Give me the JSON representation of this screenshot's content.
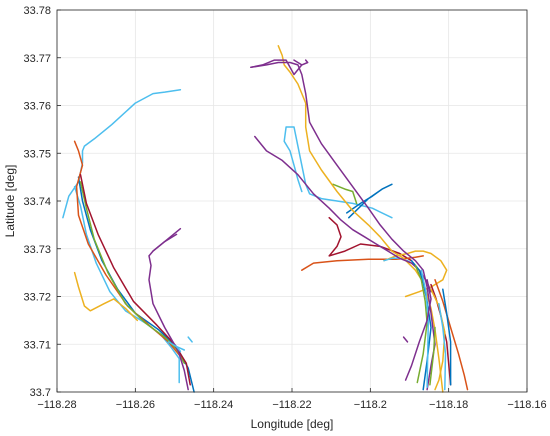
{
  "chart_data": {
    "type": "line",
    "title": "",
    "xlabel": "Longitude [deg]",
    "ylabel": "Latitude [deg]",
    "xlim": [
      -118.28,
      -118.16
    ],
    "ylim": [
      33.7,
      33.78
    ],
    "xticks": [
      -118.28,
      -118.26,
      -118.24,
      -118.22,
      -118.2,
      -118.18,
      -118.16
    ],
    "xtick_labels": [
      "−118.28",
      "−118.26",
      "−118.24",
      "−118.22",
      "−118.2",
      "−118.18",
      "−118.16"
    ],
    "yticks": [
      33.7,
      33.71,
      33.72,
      33.73,
      33.74,
      33.75,
      33.76,
      33.77,
      33.78
    ],
    "ytick_labels": [
      "33.7",
      "33.71",
      "33.72",
      "33.73",
      "33.74",
      "33.75",
      "33.76",
      "33.77",
      "33.78"
    ],
    "grid": true,
    "legend": false,
    "series": [
      {
        "color": "#4DBEEE",
        "x": [
          -118.2785,
          -118.277,
          -118.2745,
          -118.2735,
          -118.2735,
          -118.273,
          -118.2705,
          -118.266,
          -118.26,
          -118.2555,
          -118.2525,
          -118.2485
        ],
        "y": [
          33.7365,
          33.741,
          33.744,
          33.748,
          33.7505,
          33.7515,
          33.753,
          33.756,
          33.7605,
          33.7625,
          33.7628,
          33.7633
        ]
      },
      {
        "color": "#4DBEEE",
        "x": [
          -118.2755,
          -118.274,
          -118.2725,
          -118.27,
          -118.2665,
          -118.2625,
          -118.2575,
          -118.2535,
          -118.251,
          -118.2488,
          -118.2488
        ],
        "y": [
          33.743,
          33.739,
          33.733,
          33.727,
          33.721,
          33.717,
          33.7145,
          33.712,
          33.7095,
          33.707,
          33.702
        ]
      },
      {
        "color": "#0072BD",
        "x": [
          -118.2745,
          -118.2735,
          -118.2715,
          -118.2685,
          -118.2645,
          -118.26,
          -118.254,
          -118.2495,
          -118.2465,
          -118.245
        ],
        "y": [
          33.745,
          33.74,
          33.734,
          33.7275,
          33.7215,
          33.7165,
          33.713,
          33.7095,
          33.705,
          33.7
        ]
      },
      {
        "color": "#D95319",
        "x": [
          -118.2755,
          -118.2745,
          -118.2735,
          -118.275,
          -118.2745,
          -118.272,
          -118.2675,
          -118.262,
          -118.2565,
          -118.2515,
          -118.248
        ],
        "y": [
          33.7525,
          33.7505,
          33.7475,
          33.743,
          33.737,
          33.731,
          33.7245,
          33.718,
          33.714,
          33.7105,
          33.707
        ]
      },
      {
        "color": "#77AC30",
        "x": [
          -118.274,
          -118.2725,
          -118.2705,
          -118.267,
          -118.2625,
          -118.2575,
          -118.2525,
          -118.2495,
          -118.2475
        ],
        "y": [
          33.744,
          33.7385,
          33.732,
          33.725,
          33.7185,
          33.7145,
          33.7115,
          33.709,
          33.706
        ]
      },
      {
        "color": "#A2142F",
        "x": [
          -118.274,
          -118.2725,
          -118.2695,
          -118.2655,
          -118.2605,
          -118.2545,
          -118.25,
          -118.247,
          -118.246
        ],
        "y": [
          33.7455,
          33.7395,
          33.733,
          33.726,
          33.719,
          33.714,
          33.71,
          33.706,
          33.7015
        ]
      },
      {
        "color": "#EDB120",
        "x": [
          -118.2755,
          -118.2745,
          -118.273,
          -118.2715,
          -118.268,
          -118.2655,
          -118.2625,
          -118.2595
        ],
        "y": [
          33.725,
          33.722,
          33.718,
          33.717,
          33.7185,
          33.7195,
          33.7175,
          33.715
        ]
      },
      {
        "color": "#7E2F8E",
        "x": [
          -118.2465,
          -118.2475,
          -118.249,
          -118.2525,
          -118.2555,
          -118.2565,
          -118.256,
          -118.2565,
          -118.2555,
          -118.2525,
          -118.2495
        ],
        "y": [
          33.7005,
          33.7045,
          33.7085,
          33.7135,
          33.7185,
          33.7235,
          33.7265,
          33.7285,
          33.7295,
          33.7315,
          33.733
        ]
      },
      {
        "color": "#7E2F8E",
        "x": [
          -118.2555,
          -118.2525,
          -118.2485
        ],
        "y": [
          33.7295,
          33.7315,
          33.7342
        ]
      },
      {
        "color": "#4DBEEE",
        "x": [
          -118.2175,
          -118.2185,
          -118.2195,
          -118.2205,
          -118.222,
          -118.2215,
          -118.2195,
          -118.2175,
          -118.2165,
          -118.2155,
          -118.2125,
          -118.2085,
          -118.2045,
          -118.1995,
          -118.1945
        ],
        "y": [
          33.742,
          33.7445,
          33.7475,
          33.7505,
          33.7525,
          33.7555,
          33.7555,
          33.7475,
          33.7435,
          33.7415,
          33.7405,
          33.74,
          33.7395,
          33.7385,
          33.7365
        ]
      },
      {
        "color": "#0072BD",
        "x": [
          -118.206,
          -118.2025,
          -118.1995,
          -118.197,
          -118.1945,
          -118.197,
          -118.2005,
          -118.203,
          -118.2055
        ],
        "y": [
          33.7375,
          33.7395,
          33.741,
          33.7425,
          33.7435,
          33.7425,
          33.7405,
          33.7385,
          33.7365
        ]
      },
      {
        "color": "#77AC30",
        "x": [
          -118.2095,
          -118.2065,
          -118.2045,
          -118.2035
        ],
        "y": [
          33.7435,
          33.7425,
          33.742,
          33.7395
        ]
      },
      {
        "color": "#A2142F",
        "x": [
          -118.2105,
          -118.2085,
          -118.2075,
          -118.2085,
          -118.2105,
          -118.2065,
          -118.2025,
          -118.1975,
          -118.1925,
          -118.1895
        ],
        "y": [
          33.7365,
          33.735,
          33.7325,
          33.7305,
          33.7285,
          33.7295,
          33.731,
          33.7305,
          33.729,
          33.7275
        ]
      },
      {
        "color": "#D95319",
        "x": [
          -118.2175,
          -118.2145,
          -118.2085,
          -118.2005,
          -118.1935,
          -118.1905,
          -118.1885,
          -118.1865
        ],
        "y": [
          33.7255,
          33.727,
          33.7275,
          33.7278,
          33.7278,
          33.728,
          33.7282,
          33.7285
        ]
      },
      {
        "color": "#EDB120",
        "x": [
          -118.1965,
          -118.1935,
          -118.1905,
          -118.1885,
          -118.1865,
          -118.1845,
          -118.182,
          -118.1805,
          -118.1815,
          -118.1845,
          -118.1875,
          -118.191
        ],
        "y": [
          33.7275,
          33.7285,
          33.729,
          33.7295,
          33.7295,
          33.729,
          33.7275,
          33.7255,
          33.7235,
          33.722,
          33.721,
          33.72
        ]
      },
      {
        "color": "#4DBEEE",
        "x": [
          -118.1965,
          -118.1945,
          -118.1925,
          -118.1905,
          -118.1885
        ],
        "y": [
          33.7275,
          33.728,
          33.728,
          33.7275,
          33.7265
        ]
      },
      {
        "color": "#EDB120",
        "x": [
          -118.2235,
          -118.2225,
          -118.222,
          -118.2205,
          -118.2185,
          -118.2165,
          -118.2165,
          -118.2155,
          -118.2125,
          -118.2085,
          -118.2045,
          -118.2005,
          -118.1975,
          -118.1945,
          -118.1915,
          -118.1885,
          -118.1865,
          -118.1845,
          -118.1835,
          -118.1825,
          -118.1815
        ],
        "y": [
          33.7725,
          33.7705,
          33.7685,
          33.767,
          33.7645,
          33.7605,
          33.7555,
          33.7505,
          33.7465,
          33.742,
          33.738,
          33.735,
          33.7325,
          33.7295,
          33.728,
          33.7255,
          33.723,
          33.7175,
          33.713,
          33.707,
          33.7
        ]
      },
      {
        "color": "#7E2F8E",
        "x": [
          -118.2305,
          -118.2265,
          -118.2235,
          -118.2205,
          -118.2185,
          -118.2175,
          -118.2165,
          -118.2155,
          -118.2125,
          -118.2085,
          -118.2045,
          -118.2005,
          -118.1975,
          -118.1945,
          -118.1915,
          -118.1885,
          -118.1865,
          -118.1855,
          -118.1845,
          -118.1835,
          -118.1845,
          -118.1855
        ],
        "y": [
          33.768,
          33.7685,
          33.769,
          33.769,
          33.7685,
          33.7665,
          33.7625,
          33.7565,
          33.752,
          33.7475,
          33.743,
          33.7385,
          33.735,
          33.732,
          33.7295,
          33.7275,
          33.7255,
          33.722,
          33.7165,
          33.71,
          33.7055,
          33.7005
        ]
      },
      {
        "color": "#7E2F8E",
        "x": [
          -118.2305,
          -118.2275,
          -118.2245,
          -118.2215,
          -118.2195,
          -118.2175
        ],
        "y": [
          33.768,
          33.7685,
          33.7695,
          33.7695,
          33.7665,
          33.7685
        ]
      },
      {
        "color": "#7E2F8E",
        "x": [
          -118.2195,
          -118.2175,
          -118.216,
          -118.2165
        ],
        "y": [
          33.7695,
          33.7685,
          33.769,
          33.7695
        ]
      },
      {
        "color": "#7E2F8E",
        "x": [
          -118.2295,
          -118.2265,
          -118.2225,
          -118.2185,
          -118.2145,
          -118.2105,
          -118.2075,
          -118.2045,
          -118.2015,
          -118.1985,
          -118.1955,
          -118.1925,
          -118.1895,
          -118.1875,
          -118.1855,
          -118.1845
        ],
        "y": [
          33.7535,
          33.7505,
          33.7485,
          33.7455,
          33.7415,
          33.7385,
          33.736,
          33.734,
          33.7325,
          33.731,
          33.7295,
          33.728,
          33.727,
          33.7255,
          33.723,
          33.721
        ]
      },
      {
        "color": "#7E2F8E",
        "x": [
          -118.1915,
          -118.1905
        ],
        "y": [
          33.7115,
          33.7105
        ]
      },
      {
        "color": "#0072BD",
        "x": [
          -118.1895,
          -118.1875,
          -118.1865,
          -118.1855,
          -118.1845,
          -118.1855,
          -118.1865
        ],
        "y": [
          33.7275,
          33.7255,
          33.723,
          33.719,
          33.7135,
          33.7065,
          33.7005
        ]
      },
      {
        "color": "#77AC30",
        "x": [
          -118.1885,
          -118.187,
          -118.186,
          -118.1855,
          -118.1865,
          -118.188
        ],
        "y": [
          33.7265,
          33.7235,
          33.719,
          33.7145,
          33.708,
          33.702
        ]
      },
      {
        "color": "#4DBEEE",
        "x": [
          -118.187,
          -118.1858,
          -118.1852,
          -118.1855
        ],
        "y": [
          33.7255,
          33.721,
          33.715,
          33.701
        ]
      },
      {
        "color": "#7E2F8E",
        "x": [
          -118.1855,
          -118.1845,
          -118.1855,
          -118.1875,
          -118.1895,
          -118.191
        ],
        "y": [
          33.7235,
          33.7195,
          33.715,
          33.7105,
          33.7055,
          33.7025
        ]
      },
      {
        "color": "#A2142F",
        "x": [
          -118.1845,
          -118.1832,
          -118.182,
          -118.1805,
          -118.1795
        ],
        "y": [
          33.7225,
          33.7195,
          33.716,
          33.7105,
          33.7015
        ]
      },
      {
        "color": "#D95319",
        "x": [
          -118.1835,
          -118.1815,
          -118.1795,
          -118.1775,
          -118.176,
          -118.1752
        ],
        "y": [
          33.7235,
          33.719,
          33.7135,
          33.708,
          33.7035,
          33.7005
        ]
      },
      {
        "color": "#EDB120",
        "x": [
          -118.1845,
          -118.1825,
          -118.181,
          -118.1815,
          -118.1825,
          -118.1835
        ],
        "y": [
          33.7215,
          33.718,
          33.7125,
          33.7065,
          33.7025,
          33.7005
        ]
      },
      {
        "color": "#4DBEEE",
        "x": [
          -118.1825,
          -118.1815,
          -118.1808,
          -118.181
        ],
        "y": [
          33.7185,
          33.7135,
          33.708,
          33.7005
        ]
      },
      {
        "color": "#0072BD",
        "x": [
          -118.1815,
          -118.1805,
          -118.1795,
          -118.1795
        ],
        "y": [
          33.7215,
          33.7165,
          33.7105,
          33.7015
        ]
      },
      {
        "color": "#77AC30",
        "x": [
          -118.1835,
          -118.1838,
          -118.1848
        ],
        "y": [
          33.7135,
          33.7085,
          33.7015
        ]
      },
      {
        "color": "#4DBEEE",
        "x": [
          -118.2515,
          -118.2495,
          -118.2475
        ],
        "y": [
          33.7105,
          33.7095,
          33.7088
        ]
      },
      {
        "color": "#4DBEEE",
        "x": [
          -118.2465,
          -118.2455
        ],
        "y": [
          33.7115,
          33.7105
        ]
      },
      {
        "color": "#4DBEEE",
        "x": [
          -118.2495,
          -118.2485
        ],
        "y": [
          33.7095,
          33.7085
        ]
      }
    ]
  }
}
